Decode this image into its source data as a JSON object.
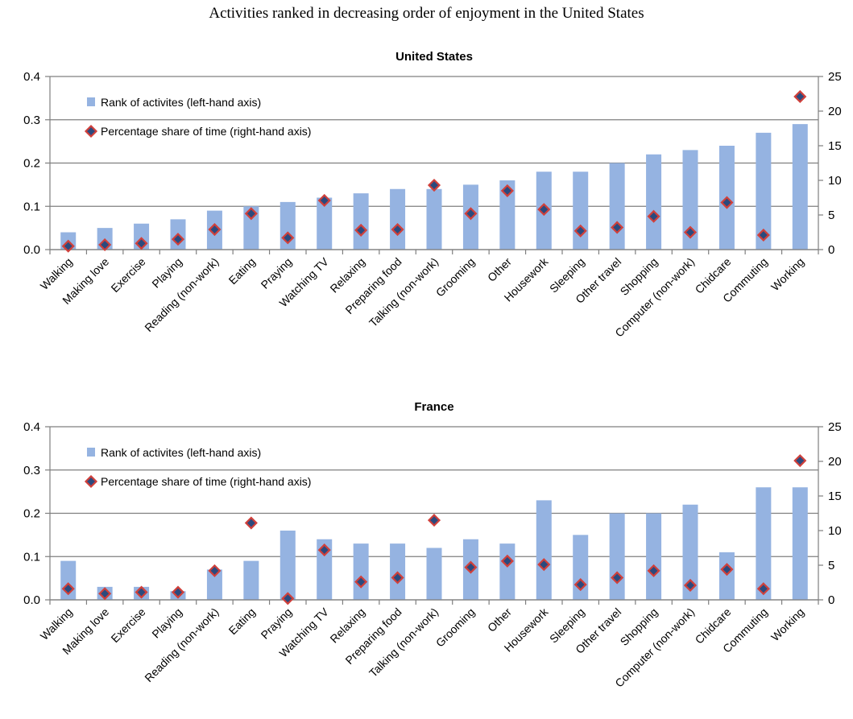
{
  "page_title": "Activities ranked in decreasing order of enjoyment in the United States",
  "colors": {
    "bar": "#95b3e1",
    "marker_fill": "#2b4a7e",
    "marker_stroke": "#d0403b",
    "axis": "#7f7f7f",
    "grid": "#7f7f7f"
  },
  "chart_data": [
    {
      "type": "bar",
      "title": "United States",
      "categories": [
        "Walking",
        "Making love",
        "Exercise",
        "Playing",
        "Reading (non-work)",
        "Eating",
        "Praying",
        "Watching TV",
        "Relaxing",
        "Preparing food",
        "Talking (non-work)",
        "Grooming",
        "Other",
        "Housework",
        "Sleeping",
        "Other travel",
        "Shopping",
        "Computer (non-work)",
        "Chidcare",
        "Commuting",
        "Working"
      ],
      "series": [
        {
          "name": "Rank of activites (left-hand axis)",
          "axis": "left",
          "kind": "bar",
          "values": [
            0.04,
            0.05,
            0.06,
            0.07,
            0.09,
            0.1,
            0.11,
            0.12,
            0.13,
            0.14,
            0.14,
            0.15,
            0.16,
            0.18,
            0.18,
            0.2,
            0.22,
            0.23,
            0.24,
            0.27,
            0.29
          ]
        },
        {
          "name": "Percentage share of time (right-hand axis)",
          "axis": "right",
          "kind": "marker",
          "values": [
            0.5,
            0.7,
            0.9,
            1.5,
            2.9,
            5.2,
            1.7,
            7.1,
            2.8,
            2.9,
            9.3,
            5.2,
            8.5,
            5.8,
            2.7,
            3.2,
            4.8,
            2.5,
            6.8,
            2.1,
            22.1
          ]
        }
      ],
      "y_left_ticks": [
        "0.0",
        "0.1",
        "0.2",
        "0.3",
        "0.4"
      ],
      "y_right_ticks": [
        "0",
        "5",
        "10",
        "15",
        "20",
        "25"
      ],
      "ylim_left": [
        0,
        0.4
      ],
      "ylim_right": [
        0,
        25
      ],
      "grid": true,
      "legend_position": "top-left"
    },
    {
      "type": "bar",
      "title": "France",
      "categories": [
        "Walking",
        "Making love",
        "Exercise",
        "Playing",
        "Reading (non-work)",
        "Eating",
        "Praying",
        "Watching TV",
        "Relaxing",
        "Preparing food",
        "Talking (non-work)",
        "Grooming",
        "Other",
        "Housework",
        "Sleeping",
        "Other travel",
        "Shopping",
        "Computer (non-work)",
        "Chidcare",
        "Commuting",
        "Working"
      ],
      "series": [
        {
          "name": "Rank of activites (left-hand axis)",
          "axis": "left",
          "kind": "bar",
          "values": [
            0.09,
            0.03,
            0.03,
            0.02,
            0.07,
            0.09,
            0.16,
            0.14,
            0.13,
            0.13,
            0.12,
            0.14,
            0.13,
            0.23,
            0.15,
            0.2,
            0.2,
            0.22,
            0.11,
            0.26,
            0.26
          ]
        },
        {
          "name": "Percentage share of time (right-hand axis)",
          "axis": "right",
          "kind": "marker",
          "values": [
            1.6,
            0.9,
            1.1,
            1.1,
            4.2,
            11.1,
            0.2,
            7.2,
            2.6,
            3.2,
            11.5,
            4.7,
            5.6,
            5.1,
            2.2,
            3.2,
            4.2,
            2.1,
            4.4,
            1.6,
            20.1
          ]
        }
      ],
      "y_left_ticks": [
        "0.0",
        "0.1",
        "0.2",
        "0.3",
        "0.4"
      ],
      "y_right_ticks": [
        "0",
        "5",
        "10",
        "15",
        "20",
        "25"
      ],
      "ylim_left": [
        0,
        0.4
      ],
      "ylim_right": [
        0,
        25
      ],
      "grid": true,
      "legend_position": "top-left"
    }
  ]
}
